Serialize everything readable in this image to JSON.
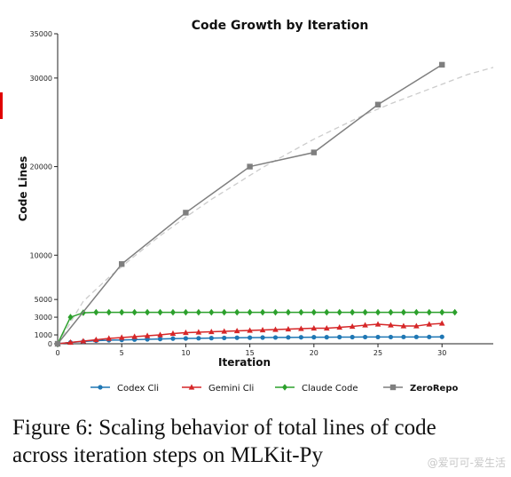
{
  "caption": {
    "line1": "Figure 6: Scaling behavior of total lines of code",
    "line2": "across iteration steps on MLKit-Py"
  },
  "watermark": "@爱可可-爱生活",
  "chart_data": {
    "type": "line",
    "title": "Code Growth by Iteration",
    "xlabel": "Iteration",
    "ylabel": "Code Lines",
    "xlim": [
      0,
      34
    ],
    "ylim": [
      0,
      35000
    ],
    "xticks": [
      0,
      5,
      10,
      15,
      20,
      25,
      30
    ],
    "yticks": [
      0,
      1000,
      3000,
      5000,
      10000,
      20000,
      30000,
      35000
    ],
    "legend_position": "bottom",
    "grid": false,
    "series": [
      {
        "name": "Codex Cli",
        "color": "#1f77b4",
        "marker": "circle",
        "x": [
          0,
          1,
          2,
          3,
          4,
          5,
          6,
          7,
          8,
          9,
          10,
          11,
          12,
          13,
          14,
          15,
          16,
          17,
          18,
          19,
          20,
          21,
          22,
          23,
          24,
          25,
          26,
          27,
          28,
          29,
          30
        ],
        "y": [
          0,
          150,
          250,
          350,
          400,
          430,
          470,
          500,
          540,
          580,
          600,
          620,
          640,
          660,
          680,
          690,
          700,
          710,
          720,
          730,
          740,
          740,
          750,
          750,
          760,
          760,
          760,
          770,
          770,
          770,
          780
        ]
      },
      {
        "name": "Gemini Cli",
        "color": "#d62728",
        "marker": "triangle",
        "x": [
          0,
          1,
          2,
          3,
          4,
          5,
          6,
          7,
          8,
          9,
          10,
          11,
          12,
          13,
          14,
          15,
          16,
          17,
          18,
          19,
          20,
          21,
          22,
          23,
          24,
          25,
          26,
          27,
          28,
          29,
          30
        ],
        "y": [
          0,
          150,
          300,
          450,
          600,
          700,
          800,
          900,
          1000,
          1150,
          1250,
          1300,
          1350,
          1400,
          1450,
          1500,
          1550,
          1600,
          1650,
          1700,
          1750,
          1750,
          1850,
          1950,
          2100,
          2200,
          2100,
          2000,
          2000,
          2200,
          2300
        ]
      },
      {
        "name": "Claude Code",
        "color": "#2ca02c",
        "marker": "diamond",
        "x": [
          0,
          1,
          2,
          3,
          4,
          5,
          6,
          7,
          8,
          9,
          10,
          11,
          12,
          13,
          14,
          15,
          16,
          17,
          18,
          19,
          20,
          21,
          22,
          23,
          24,
          25,
          26,
          27,
          28,
          29,
          30,
          31
        ],
        "y": [
          0,
          3000,
          3500,
          3550,
          3550,
          3550,
          3550,
          3550,
          3550,
          3550,
          3550,
          3550,
          3550,
          3550,
          3550,
          3550,
          3550,
          3550,
          3550,
          3550,
          3550,
          3550,
          3550,
          3550,
          3550,
          3550,
          3550,
          3550,
          3550,
          3550,
          3550,
          3550
        ]
      },
      {
        "name": "ZeroRepo",
        "color": "#7f7f7f",
        "marker": "square",
        "bold_label": true,
        "x": [
          0,
          5,
          10,
          15,
          20,
          25,
          30
        ],
        "y": [
          0,
          9000,
          14800,
          20000,
          21600,
          27000,
          31500
        ]
      }
    ],
    "trend_line": {
      "color": "#cccccc",
      "style": "dashed",
      "x": [
        0,
        2,
        4,
        6,
        8,
        10,
        12,
        14,
        16,
        18,
        20,
        22,
        24,
        26,
        28,
        30,
        32,
        34
      ],
      "y": [
        0,
        4800,
        7500,
        9900,
        12200,
        14300,
        16300,
        18100,
        19900,
        21500,
        23100,
        24500,
        25900,
        27100,
        28200,
        29300,
        30400,
        31200
      ]
    }
  }
}
